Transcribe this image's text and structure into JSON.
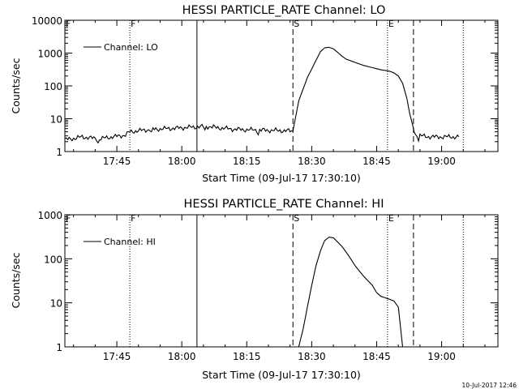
{
  "chart_data": [
    {
      "type": "line",
      "title": "HESSI PARTICLE_RATE Channel: LO",
      "xlabel": "Start Time (09-Jul-17 17:30:10)",
      "ylabel": "Counts/sec",
      "yscale": "log",
      "xlim": [
        "17:33:00",
        "19:13:00"
      ],
      "ylim": [
        1,
        10000
      ],
      "x_ticks": [
        "17:45",
        "18:00",
        "18:15",
        "18:30",
        "18:45",
        "19:00"
      ],
      "y_ticks": [
        "1",
        "10",
        "100",
        "1000",
        "10000"
      ],
      "legend": {
        "entries": [
          "Channel: LO"
        ],
        "placement": "top-left"
      },
      "markers": [
        {
          "label": "F",
          "time": "17:33:00",
          "style": "dotted"
        },
        {
          "label": "F",
          "time": "17:48:00",
          "style": "dotted"
        },
        {
          "label": "",
          "time": "18:03:30",
          "style": "solid"
        },
        {
          "label": "S",
          "time": "18:25:40",
          "style": "dashed"
        },
        {
          "label": "E",
          "time": "18:47:30",
          "style": "dotted"
        },
        {
          "label": "",
          "time": "18:53:30",
          "style": "dashed"
        },
        {
          "label": "",
          "time": "19:05:00",
          "style": "dotted"
        }
      ],
      "series": [
        {
          "name": "Channel: LO",
          "x": [
            "17:33",
            "17:35",
            "17:37",
            "17:39",
            "17:41",
            "17:43",
            "17:45",
            "17:47",
            "17:48",
            "17:50",
            "17:52",
            "17:55",
            "17:58",
            "18:00",
            "18:03",
            "18:06",
            "18:09",
            "18:12",
            "18:15",
            "18:18",
            "18:21",
            "18:24",
            "18:25:40",
            "18:27",
            "18:29",
            "18:31",
            "18:32",
            "18:33",
            "18:34",
            "18:35",
            "18:36",
            "18:37",
            "18:38",
            "18:40",
            "18:42",
            "18:44",
            "18:46",
            "18:48",
            "18:49",
            "18:50",
            "18:51",
            "18:52",
            "18:53",
            "18:54",
            "18:56",
            "18:58",
            "19:00",
            "19:02",
            "19:03",
            "19:04"
          ],
          "y": [
            2.3,
            2.5,
            2.8,
            2.6,
            2.4,
            2.7,
            2.9,
            3.2,
            4.0,
            4.3,
            4.6,
            4.9,
            5.1,
            5.3,
            5.6,
            5.8,
            5.2,
            4.8,
            4.6,
            4.5,
            4.4,
            4.3,
            4.2,
            35,
            180,
            600,
            1100,
            1450,
            1500,
            1350,
            1050,
            800,
            650,
            520,
            420,
            360,
            310,
            280,
            250,
            200,
            120,
            40,
            8,
            3.2,
            2.9,
            2.8,
            2.8,
            2.8,
            2.8,
            2.8
          ]
        }
      ]
    },
    {
      "type": "line",
      "title": "HESSI PARTICLE_RATE Channel: HI",
      "xlabel": "Start Time (09-Jul-17 17:30:10)",
      "ylabel": "Counts/sec",
      "yscale": "log",
      "xlim": [
        "17:33:00",
        "19:13:00"
      ],
      "ylim": [
        1,
        1000
      ],
      "x_ticks": [
        "17:45",
        "18:00",
        "18:15",
        "18:30",
        "18:45",
        "19:00"
      ],
      "y_ticks": [
        "1",
        "10",
        "100",
        "1000"
      ],
      "legend": {
        "entries": [
          "Channel: HI"
        ],
        "placement": "top-left"
      },
      "markers": [
        {
          "label": "F",
          "time": "17:33:00",
          "style": "dotted"
        },
        {
          "label": "F",
          "time": "17:48:00",
          "style": "dotted"
        },
        {
          "label": "",
          "time": "18:03:30",
          "style": "solid"
        },
        {
          "label": "S",
          "time": "18:25:40",
          "style": "dashed"
        },
        {
          "label": "E",
          "time": "18:47:30",
          "style": "dotted"
        },
        {
          "label": "",
          "time": "18:53:30",
          "style": "dashed"
        },
        {
          "label": "",
          "time": "19:05:00",
          "style": "dotted"
        }
      ],
      "series": [
        {
          "name": "Channel: HI",
          "x": [
            "18:27:00",
            "18:28:00",
            "18:29:00",
            "18:30:00",
            "18:31:00",
            "18:32:00",
            "18:33:00",
            "18:34:00",
            "18:35:00",
            "18:36:00",
            "18:37:00",
            "18:38:00",
            "18:39:00",
            "18:40:00",
            "18:42:00",
            "18:44:00",
            "18:45:00",
            "18:46:00",
            "18:47:00",
            "18:48:00",
            "18:49:00",
            "18:50:00",
            "18:51:00"
          ],
          "y": [
            1.0,
            2.5,
            8,
            25,
            70,
            150,
            260,
            310,
            300,
            240,
            190,
            140,
            100,
            70,
            40,
            25,
            17,
            14,
            13,
            12,
            11,
            8,
            1.0
          ]
        }
      ]
    }
  ],
  "footer": {
    "timestamp": "10-Jul-2017 12:46"
  }
}
